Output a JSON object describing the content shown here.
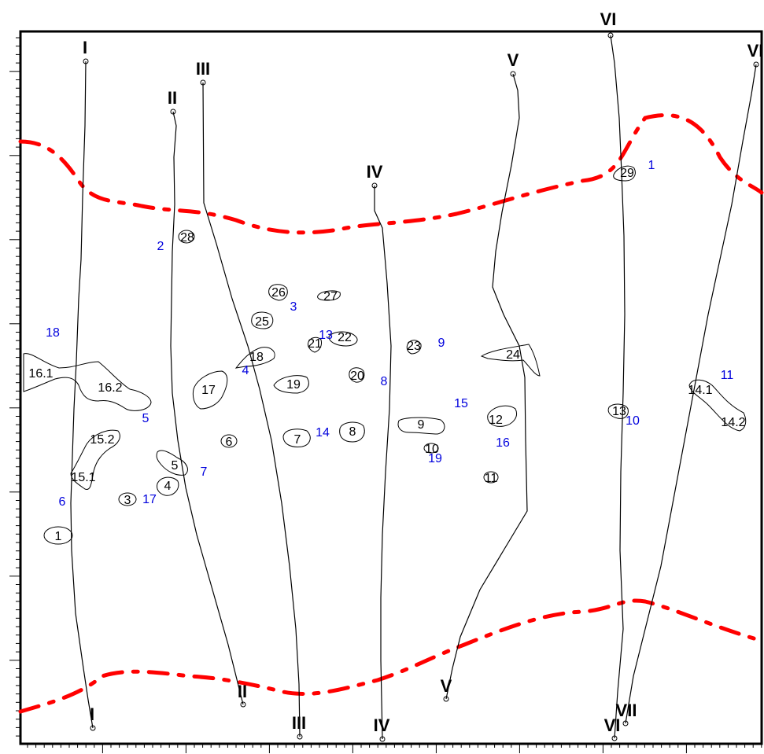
{
  "colors": {
    "boundary": "#ff0000",
    "zone_label": "#0000dd",
    "lines": "#000000"
  },
  "profiles": [
    {
      "id": "p1",
      "top": "I",
      "bottom": "I"
    },
    {
      "id": "p2",
      "top": "II",
      "bottom": "II"
    },
    {
      "id": "p3",
      "top": "III",
      "bottom": "III"
    },
    {
      "id": "p4",
      "top": "IV",
      "bottom": "IV"
    },
    {
      "id": "p5",
      "top": "V",
      "bottom": "V"
    },
    {
      "id": "p6",
      "top": "VI",
      "bottom": "VI"
    },
    {
      "id": "p6b",
      "top": "VI",
      "bottom": "VII"
    }
  ],
  "blobs": [
    "1",
    "3",
    "4",
    "5",
    "6",
    "7",
    "8",
    "9",
    "10",
    "11",
    "12",
    "13",
    "14.1",
    "14.2",
    "15.1",
    "15.2",
    "16.1",
    "16.2",
    "17",
    "18",
    "19",
    "20",
    "21",
    "22",
    "23",
    "24",
    "25",
    "26",
    "27",
    "28",
    "29"
  ],
  "zone_labels": [
    "1",
    "2",
    "3",
    "4",
    "5",
    "6",
    "7",
    "8",
    "9",
    "10",
    "11",
    "13",
    "14",
    "15",
    "16",
    "17",
    "18",
    "19"
  ]
}
